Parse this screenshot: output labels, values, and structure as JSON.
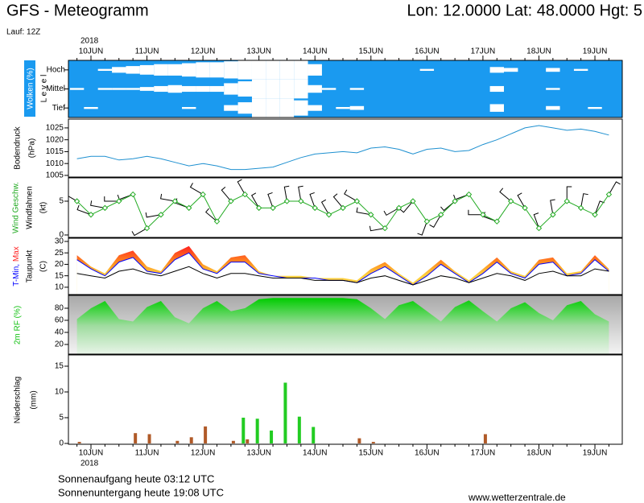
{
  "header": {
    "title": "GFS - Meteogramm",
    "location": "Lon: 12.0000 Lat: 48.0000 Hgt: 5",
    "run": "Lauf: 12Z"
  },
  "time_axis": {
    "year": "2018",
    "categories": [
      null,
      "10JUN",
      null,
      null,
      null,
      "11JUN",
      null,
      null,
      null,
      "12JUN",
      null,
      null,
      null,
      "13JUN",
      null,
      null,
      null,
      "14JUN",
      null,
      null,
      null,
      "15JUN",
      null,
      null,
      null,
      "16JUN",
      null,
      null,
      null,
      "17JUN",
      null,
      null,
      null,
      "18JUN",
      null,
      null,
      null,
      "19JUN",
      null
    ]
  },
  "chart_data": [
    {
      "type": "cloud",
      "ylabel": "Wolken (%)",
      "level_label": "L e v e l",
      "background": "#1a9af0",
      "series": [
        {
          "name": "Hoch",
          "color": "#ffffff",
          "values": [
            0,
            0,
            10,
            30,
            40,
            50,
            60,
            60,
            70,
            80,
            80,
            90,
            100,
            100,
            100,
            100,
            100,
            60,
            0,
            0,
            0,
            0,
            0,
            0,
            0,
            10,
            0,
            0,
            0,
            0,
            30,
            20,
            0,
            0,
            20,
            0,
            10,
            0,
            0
          ]
        },
        {
          "name": "Mittel",
          "color": "#ffffff",
          "values": [
            10,
            0,
            10,
            10,
            10,
            20,
            30,
            40,
            30,
            30,
            30,
            60,
            80,
            100,
            100,
            100,
            100,
            40,
            10,
            0,
            10,
            0,
            0,
            0,
            0,
            0,
            0,
            0,
            0,
            0,
            30,
            0,
            0,
            0,
            10,
            0,
            0,
            0,
            0
          ]
        },
        {
          "name": "Tief",
          "color": "#ffffff",
          "values": [
            0,
            10,
            0,
            0,
            0,
            0,
            0,
            0,
            10,
            0,
            0,
            30,
            60,
            100,
            100,
            100,
            80,
            30,
            0,
            10,
            20,
            0,
            0,
            0,
            0,
            0,
            0,
            0,
            0,
            0,
            40,
            0,
            0,
            0,
            20,
            0,
            0,
            10,
            0
          ]
        }
      ]
    },
    {
      "type": "line",
      "ylabel": "Bodendruck",
      "unit": "(hPa)",
      "color": "#1e90d0",
      "ylim": [
        1004.3,
        1028.7
      ],
      "yticks": [
        1005,
        1010,
        1015,
        1020,
        1025
      ],
      "values": [
        1012,
        1013,
        1013,
        1011.5,
        1012,
        1013,
        1012,
        1010.5,
        1009,
        1010,
        1009,
        1007.5,
        1007.5,
        1008,
        1008.5,
        1010.5,
        1012.5,
        1014,
        1014.5,
        1015,
        1014.5,
        1016.5,
        1017,
        1016,
        1014,
        1016,
        1016.5,
        1015,
        1015.5,
        1018,
        1020,
        1022.5,
        1025,
        1026,
        1025,
        1024,
        1024.5,
        1023.5,
        1022
      ]
    },
    {
      "type": "wind",
      "unit": "(kt)",
      "ylim": [
        -0.36,
        8.45
      ],
      "yticks": [
        0,
        5
      ],
      "series": [
        {
          "name": "Wind Geschw.",
          "color": "#22aa22",
          "values": [
            5,
            3,
            4,
            5,
            6,
            1,
            3,
            5,
            4,
            6,
            2,
            5,
            6,
            4,
            4,
            5,
            5,
            4,
            3,
            4,
            5,
            3,
            1,
            4,
            5,
            2,
            3,
            5,
            6,
            3,
            2,
            5,
            4,
            1,
            3,
            5,
            4,
            3,
            6
          ]
        }
      ],
      "barbs": {
        "name": "Windfahnen",
        "color": "#000000",
        "values": [
          300,
          290,
          280,
          270,
          250,
          240,
          260,
          280,
          290,
          300,
          310,
          320,
          330,
          330,
          340,
          350,
          350,
          340,
          330,
          320,
          300,
          280,
          260,
          240,
          220,
          200,
          210,
          230,
          250,
          270,
          290,
          310,
          330,
          340,
          350,
          0,
          10,
          20,
          30
        ]
      }
    },
    {
      "type": "temperature",
      "unit": "(C)",
      "ylim": [
        6.8,
        31.4
      ],
      "yticks": [
        10,
        15,
        20,
        25,
        30
      ],
      "series": [
        {
          "name": "Max",
          "color": "#ff2020",
          "values": [
            24,
            19,
            16,
            24,
            26,
            19,
            17,
            25,
            28,
            20,
            17,
            23,
            24,
            17,
            15,
            15,
            15,
            14,
            14,
            14,
            13,
            18,
            21,
            16,
            12,
            17,
            22,
            17,
            13,
            18,
            23,
            17,
            15,
            22,
            23,
            16,
            17,
            24,
            18
          ]
        },
        {
          "name": "T-Min,",
          "color": "#0000ff",
          "values": [
            22,
            18,
            15,
            21,
            23,
            17,
            16,
            22,
            25,
            18,
            16,
            21,
            21,
            16,
            15,
            14,
            14,
            14,
            13,
            13,
            12,
            16,
            19,
            15,
            11,
            15,
            20,
            16,
            12,
            16,
            21,
            16,
            14,
            20,
            21,
            15,
            16,
            22,
            17
          ]
        },
        {
          "name": "Taupunkt",
          "color": "#000000",
          "values": [
            16,
            15,
            14,
            17,
            18,
            16,
            15,
            17,
            19,
            16,
            14,
            16,
            16,
            15,
            14,
            14,
            14,
            13,
            13,
            13,
            12,
            14,
            15,
            13,
            11,
            13,
            15,
            14,
            12,
            14,
            16,
            15,
            13,
            16,
            17,
            15,
            15,
            18,
            17
          ]
        }
      ]
    },
    {
      "type": "area",
      "ylim": [
        4,
        101.3
      ],
      "yticks": [
        20,
        40,
        60,
        80
      ],
      "series": [
        {
          "name": "2m RF (%)",
          "color": "#10c010",
          "values": [
            62,
            80,
            92,
            62,
            58,
            82,
            92,
            65,
            55,
            80,
            92,
            75,
            80,
            95,
            97,
            97,
            97,
            97,
            97,
            97,
            95,
            80,
            62,
            85,
            92,
            75,
            58,
            82,
            93,
            75,
            58,
            80,
            90,
            72,
            60,
            85,
            92,
            70,
            58
          ]
        }
      ]
    },
    {
      "type": "bar",
      "ylabel": "Niederschlag",
      "unit": "(mm)",
      "ylim": [
        -0.16,
        17.19
      ],
      "yticks": [
        0,
        5,
        10,
        15
      ],
      "series": [
        {
          "color": "#22cc22",
          "values": [
            0,
            0,
            0,
            0,
            0,
            0,
            0,
            0,
            0,
            0,
            0,
            0,
            5,
            4.8,
            2.5,
            11.8,
            5.2,
            3.2,
            0,
            0,
            0,
            0,
            0,
            0,
            0,
            0,
            0,
            0,
            0,
            0,
            0,
            0,
            0,
            0,
            0,
            0,
            0,
            0,
            0
          ]
        },
        {
          "color": "#b05a28",
          "values": [
            0.3,
            0,
            0,
            0,
            2,
            1.8,
            0,
            0.5,
            1.2,
            3.3,
            0,
            0.5,
            0.8,
            0,
            0,
            0,
            0,
            0,
            0,
            0,
            1,
            0.3,
            0,
            0,
            0,
            0,
            0,
            0,
            0,
            1.8,
            0,
            0,
            0,
            0,
            0,
            0,
            0,
            0,
            0
          ]
        }
      ]
    }
  ],
  "footer": {
    "sunrise": "Sonnenaufgang heute 03:12 UTC",
    "sunset": "Sonnenuntergang heute 19:08 UTC",
    "source": "www.wetterzentrale.de"
  }
}
